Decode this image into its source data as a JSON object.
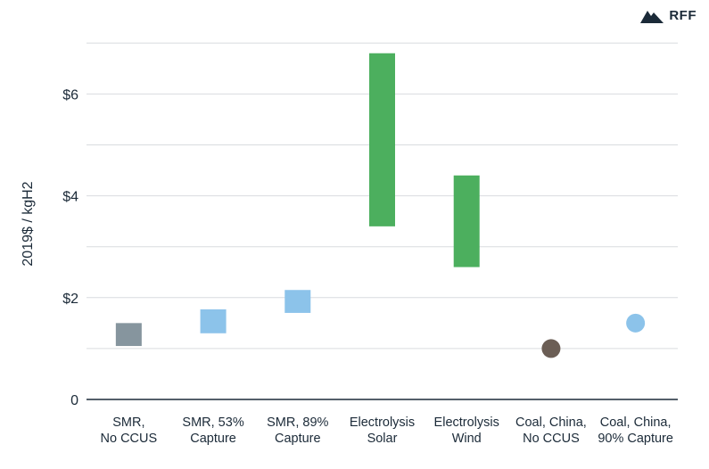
{
  "brand": {
    "logo_text": "RFF"
  },
  "chart_data": {
    "type": "range",
    "ylabel": "2019$ / kgH2",
    "ylim": [
      0,
      7
    ],
    "yticks": [
      {
        "value": 0,
        "label": "0"
      },
      {
        "value": 2,
        "label": "$2"
      },
      {
        "value": 4,
        "label": "$4"
      },
      {
        "value": 6,
        "label": "$6"
      }
    ],
    "grid": true,
    "categories": [
      {
        "line1": "SMR,",
        "line2": "No CCUS"
      },
      {
        "line1": "SMR, 53%",
        "line2": "Capture"
      },
      {
        "line1": "SMR, 89%",
        "line2": "Capture"
      },
      {
        "line1": "Electrolysis",
        "line2": "Solar"
      },
      {
        "line1": "Electrolysis",
        "line2": "Wind"
      },
      {
        "line1": "Coal, China,",
        "line2": "No CCUS"
      },
      {
        "line1": "Coal, China,",
        "line2": "90% Capture"
      }
    ],
    "ranges": [
      {
        "low": 1.05,
        "high": 1.5,
        "color": "#86959e",
        "shape": "rect"
      },
      {
        "low": 1.3,
        "high": 1.77,
        "color": "#8cc3ea",
        "shape": "rect"
      },
      {
        "low": 1.7,
        "high": 2.15,
        "color": "#8cc3ea",
        "shape": "rect"
      },
      {
        "low": 3.4,
        "high": 6.8,
        "color": "#4caf5e",
        "shape": "rect"
      },
      {
        "low": 2.6,
        "high": 4.4,
        "color": "#4caf5e",
        "shape": "rect"
      },
      {
        "low": 1.0,
        "high": 1.0,
        "color": "#6b5e55",
        "shape": "circle"
      },
      {
        "low": 1.5,
        "high": 1.5,
        "color": "#8cc3ea",
        "shape": "circle"
      }
    ]
  }
}
